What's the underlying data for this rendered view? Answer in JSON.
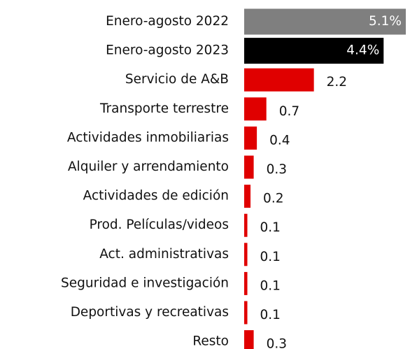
{
  "chart_data": {
    "type": "hbar",
    "categories": [
      "Enero-agosto 2022",
      "Enero-agosto 2023",
      "Servicio de A&B",
      "Transporte terrestre",
      "Actividades inmobiliarias",
      "Alquiler y arrendamiento",
      "Actividades de edición",
      "Prod. Películas/videos",
      "Act. administrativas",
      "Seguridad e investigación",
      "Deportivas y recreativas",
      "Resto"
    ],
    "values": [
      5.1,
      4.4,
      2.2,
      0.7,
      0.4,
      0.3,
      0.2,
      0.1,
      0.1,
      0.1,
      0.1,
      0.3
    ],
    "value_labels": [
      "5.1%",
      "4.4%",
      "2.2",
      "0.7",
      "0.4",
      "0.3",
      "0.2",
      "0.1",
      "0.1",
      "0.1",
      "0.1",
      "0.3"
    ],
    "colors": [
      "#7f7f7f",
      "#000000",
      "#e00000",
      "#e00000",
      "#e00000",
      "#e00000",
      "#e00000",
      "#e00000",
      "#e00000",
      "#e00000",
      "#e00000",
      "#e00000"
    ]
  }
}
